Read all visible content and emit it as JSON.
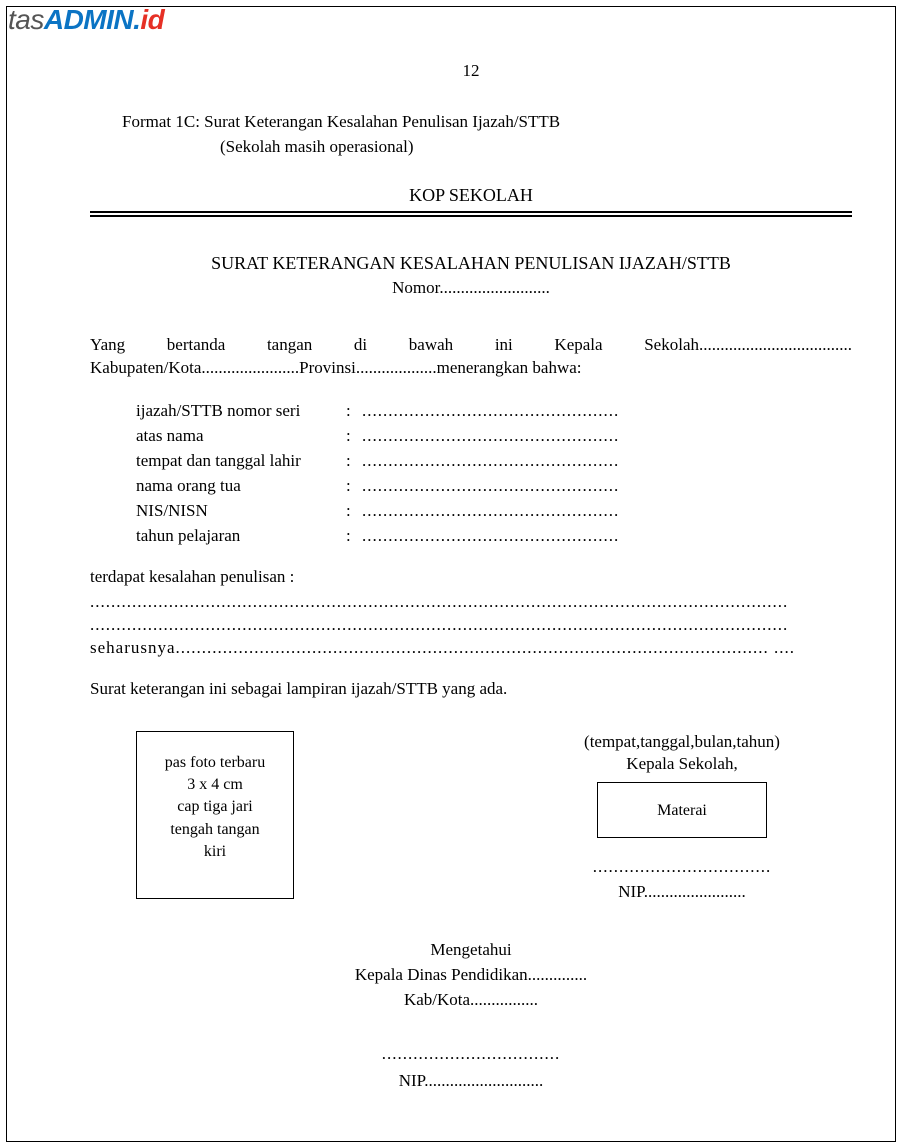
{
  "watermark": {
    "tas": "tas",
    "admin": "ADMIN",
    "dot": ".",
    "id": "id"
  },
  "page_number": "12",
  "format_label": "Format 1C: Surat Keterangan Kesalahan Penulisan Ijazah/STTB",
  "format_sub": "(Sekolah masih operasional)",
  "kop": "KOP SEKOLAH",
  "title": "SURAT KETERANGAN KESALAHAN PENULISAN IJAZAH/STTB",
  "nomor": "Nomor..........................",
  "para1_a": "Yang  bertanda  tangan  di  bawah  ini  Kepala  Sekolah",
  "para1_dots1": "....................................",
  "para1_b": "Kabupaten/Kota",
  "para1_dots2": ".......................",
  "para1_c": "Provinsi",
  "para1_dots3": "...................",
  "para1_d": "menerangkan bahwa:",
  "fields": [
    {
      "label": "ijazah/STTB  nomor seri",
      "dots": "................................................."
    },
    {
      "label": "atas nama",
      "dots": "................................................."
    },
    {
      "label": "tempat dan tanggal lahir",
      "dots": "................................................."
    },
    {
      "label": "nama orang tua",
      "dots": "................................................."
    },
    {
      "label": "NIS/NISN",
      "dots": "................................................."
    },
    {
      "label": "tahun pelajaran",
      "dots": "................................................."
    }
  ],
  "err_label": "terdapat kesalahan penulisan :",
  "dots_full_1": ".....................................................................................................................................",
  "dots_full_2": ".....................................................................................................................................",
  "seharusnya": "seharusnya",
  "seharusnya_dots": ".................................................................................................................  ....",
  "closing": "Surat keterangan ini sebagai lampiran ijazah/STTB yang ada.",
  "photo": {
    "l1": "pas foto terbaru",
    "l2": "3 x 4 cm",
    "l3": "cap tiga jari",
    "l4": "tengah tangan",
    "l5": "kiri"
  },
  "sign": {
    "place_date": "(tempat,tanggal,bulan,tahun)",
    "role": "Kepala Sekolah,",
    "materai": "Materai",
    "name_dots": "..................................",
    "nip": "NIP",
    "nip_dots": "........................"
  },
  "meng": {
    "title": "Mengetahui",
    "role": "Kepala Dinas Pendidikan",
    "role_dots": "..............",
    "kab": "Kab/Kota",
    "kab_dots": "................",
    "name_dots": "..................................",
    "nip": "NIP",
    "nip_dots": "............................"
  },
  "colors": {
    "text": "#000000",
    "background": "#ffffff",
    "wm_gray": "#555555",
    "wm_blue": "#0b74c4",
    "wm_red": "#e63025"
  },
  "typography": {
    "body_font": "Times New Roman, serif",
    "body_size_pt": 13,
    "watermark_font": "Arial, sans-serif",
    "watermark_size_pt": 21
  }
}
